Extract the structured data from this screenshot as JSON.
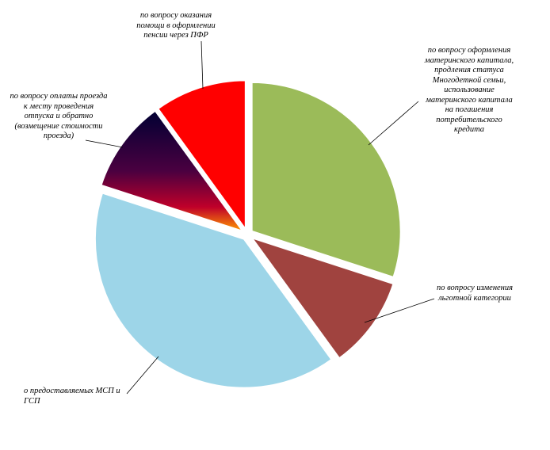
{
  "chart_data": {
    "type": "pie",
    "title": "",
    "legend": "none",
    "slices": [
      {
        "label": "по вопросу оформления\nматеринского капитала,\nпродления статуса\nМногодетной семьи,\nиспользование\nматеринского капитала\nна погашения\nпотребительского\nкредита",
        "value": 30,
        "color": "#9BBB59"
      },
      {
        "label": "по вопросу изменения\nльготной категории",
        "value": 10,
        "color": "#A0433F"
      },
      {
        "label": "о предоставляемых МСП и\nГСП",
        "value": 40,
        "color": "#9DD5E8"
      },
      {
        "label": "по вопросу оплаты проезда\nк месту проведения\nотпуска и обратно\n(возмещение стоимости\nпроезда)",
        "value": 10,
        "color": "gradient-dark-to-orange"
      },
      {
        "label": "по вопросу оказания\nпомощи в оформлении\nпенсии через ПФР",
        "value": 10,
        "color": "#FF0000"
      }
    ]
  }
}
